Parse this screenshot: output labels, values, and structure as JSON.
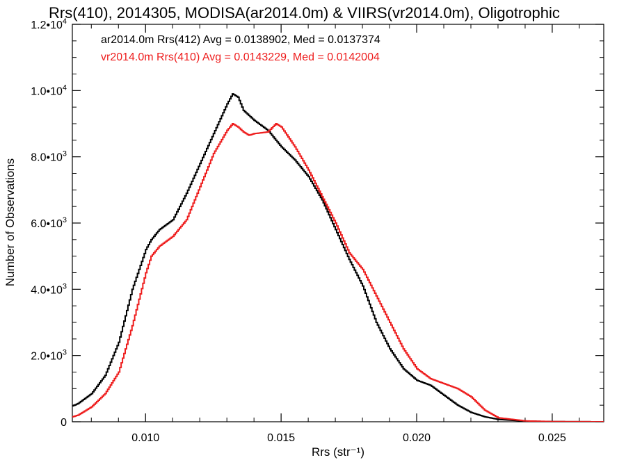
{
  "chart_data": {
    "type": "line",
    "title": "Rrs(410), 2014305, MODISA(ar2014.0m) & VIIRS(vr2014.0m), Oligotrophic",
    "xlabel": "Rrs (str⁻¹)",
    "ylabel": "Number of Observations",
    "xlim": [
      0.0073,
      0.0269
    ],
    "ylim": [
      0,
      12000
    ],
    "grid": false,
    "xticks": [
      0.01,
      0.015,
      0.02,
      0.025
    ],
    "xtick_labels": [
      "0.010",
      "0.015",
      "0.020",
      "0.025"
    ],
    "yticks": [
      {
        "value": 0,
        "mant": "0",
        "exp": ""
      },
      {
        "value": 2000,
        "mant": "2.0•10",
        "exp": "3"
      },
      {
        "value": 4000,
        "mant": "4.0•10",
        "exp": "3"
      },
      {
        "value": 6000,
        "mant": "6.0•10",
        "exp": "3"
      },
      {
        "value": 8000,
        "mant": "8.0•10",
        "exp": "3"
      },
      {
        "value": 10000,
        "mant": "1.0•10",
        "exp": "4"
      },
      {
        "value": 12000,
        "mant": "1.2•10",
        "exp": "4"
      }
    ],
    "annotations": [
      "ar2014.0m Rrs(412) Avg = 0.0138902, Med = 0.0137374",
      "vr2014.0m Rrs(410) Avg = 0.0143229, Med = 0.0142004"
    ],
    "series": [
      {
        "color": "#000000",
        "x": [
          0.0073,
          0.0075,
          0.008,
          0.0085,
          0.009,
          0.0095,
          0.01,
          0.0102,
          0.0105,
          0.011,
          0.0115,
          0.012,
          0.0125,
          0.013,
          0.0132,
          0.0134,
          0.0136,
          0.0138,
          0.014,
          0.0145,
          0.015,
          0.0155,
          0.016,
          0.0165,
          0.017,
          0.0175,
          0.018,
          0.0185,
          0.019,
          0.0195,
          0.02,
          0.0205,
          0.021,
          0.0215,
          0.022,
          0.0225,
          0.023,
          0.024,
          0.025,
          0.0269
        ],
        "y": [
          480,
          550,
          850,
          1400,
          2400,
          4000,
          5200,
          5500,
          5800,
          6100,
          6900,
          7800,
          8700,
          9600,
          9900,
          9800,
          9400,
          9250,
          9100,
          8800,
          8300,
          7900,
          7400,
          6700,
          5800,
          4900,
          4100,
          3000,
          2200,
          1600,
          1250,
          1100,
          800,
          500,
          280,
          150,
          70,
          20,
          5,
          0
        ]
      },
      {
        "color": "#ee1c1c",
        "x": [
          0.0073,
          0.0075,
          0.008,
          0.0085,
          0.009,
          0.0095,
          0.01,
          0.0102,
          0.0105,
          0.011,
          0.0115,
          0.012,
          0.0125,
          0.013,
          0.0132,
          0.0134,
          0.0136,
          0.0138,
          0.014,
          0.0145,
          0.0148,
          0.015,
          0.0155,
          0.016,
          0.0165,
          0.017,
          0.0175,
          0.018,
          0.0185,
          0.019,
          0.0195,
          0.02,
          0.0205,
          0.021,
          0.0215,
          0.022,
          0.0225,
          0.023,
          0.024,
          0.025,
          0.0269
        ],
        "y": [
          150,
          200,
          450,
          850,
          1500,
          2900,
          4500,
          5000,
          5300,
          5600,
          6100,
          7100,
          8100,
          8800,
          9000,
          8900,
          8750,
          8650,
          8700,
          8750,
          9000,
          8900,
          8300,
          7600,
          6800,
          6000,
          5100,
          4600,
          3800,
          3000,
          2200,
          1600,
          1300,
          1150,
          1000,
          750,
          350,
          120,
          25,
          5,
          0
        ]
      }
    ]
  }
}
